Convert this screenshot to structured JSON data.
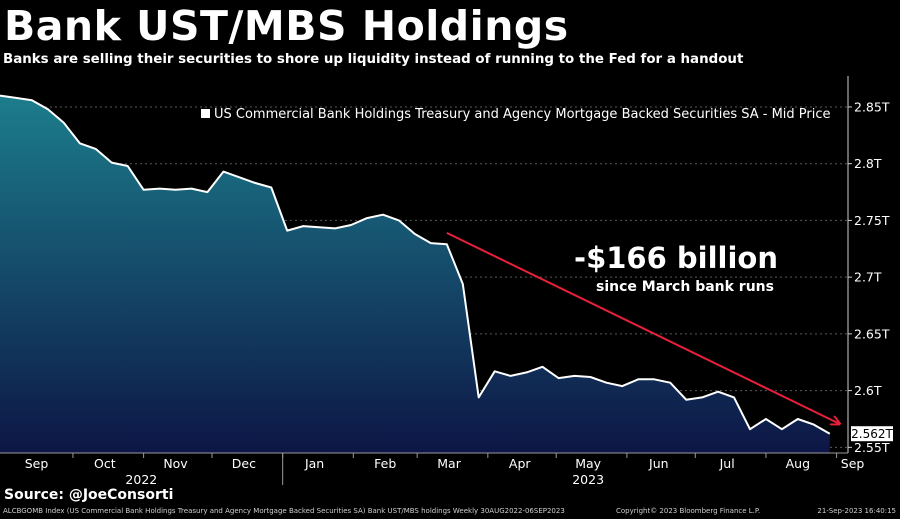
{
  "title": "Bank UST/MBS Holdings",
  "subtitle": "Banks are selling their securities to shore up liquidity instead of running to the Fed for a handout",
  "source": "Source: @JoeConsorti",
  "footer": {
    "left": "ALCBGOMB Index (US Commercial Bank Holdings Treasury and Agency Mortgage Backed Securities SA) Bank UST/MBS holdings  Weekly 30AUG2022-06SEP2023",
    "center": "Copyright© 2023 Bloomberg Finance L.P.",
    "right": "21-Sep-2023 16:40:15"
  },
  "colors": {
    "background": "#000000",
    "area_top": "#1c7d8c",
    "area_bottom": "#0d1646",
    "line": "#ffffff",
    "arrow": "#e8203a",
    "grid": "#5a5a5a"
  },
  "chart_data": {
    "type": "area",
    "legend": "US Commercial Bank Holdings Treasury and Agency Mortgage Backed Securities SA - Mid Price",
    "legend_placement": "top-right",
    "grid": "horizontal dashed",
    "y_axis": {
      "side": "right",
      "range": [
        2.545,
        2.872
      ],
      "ticks": [
        2.55,
        2.6,
        2.65,
        2.7,
        2.75,
        2.8,
        2.85
      ],
      "tick_labels": [
        "2.55T",
        "2.6T",
        "2.65T",
        "2.7T",
        "2.75T",
        "2.8T",
        "2.85T"
      ]
    },
    "x_axis": {
      "start": "2022-08-30",
      "end": "2023-09-06",
      "months": [
        {
          "label": "Sep",
          "date": "2022-09-15"
        },
        {
          "label": "Oct",
          "date": "2022-10-15"
        },
        {
          "label": "Nov",
          "date": "2022-11-15"
        },
        {
          "label": "Dec",
          "date": "2022-12-15"
        },
        {
          "label": "Jan",
          "date": "2023-01-15"
        },
        {
          "label": "Feb",
          "date": "2023-02-15"
        },
        {
          "label": "Mar",
          "date": "2023-03-15"
        },
        {
          "label": "Apr",
          "date": "2023-04-15"
        },
        {
          "label": "May",
          "date": "2023-05-15"
        },
        {
          "label": "Jun",
          "date": "2023-06-15"
        },
        {
          "label": "Jul",
          "date": "2023-07-15"
        },
        {
          "label": "Aug",
          "date": "2023-08-15"
        },
        {
          "label": "Sep",
          "date": "2023-09-08"
        }
      ],
      "month_boundaries": [
        "2022-10-01",
        "2022-11-01",
        "2022-12-01",
        "2023-01-01",
        "2023-02-01",
        "2023-03-01",
        "2023-04-01",
        "2023-05-01",
        "2023-06-01",
        "2023-07-01",
        "2023-08-01",
        "2023-09-01"
      ],
      "years": [
        {
          "label": "2022",
          "date": "2022-10-31"
        },
        {
          "label": "2023",
          "date": "2023-05-15"
        }
      ],
      "year_boundary": "2023-01-01"
    },
    "series": [
      {
        "values": [
          {
            "x": "2022-08-30",
            "y": 2.86
          },
          {
            "x": "2022-09-06",
            "y": 2.858
          },
          {
            "x": "2022-09-13",
            "y": 2.856
          },
          {
            "x": "2022-09-20",
            "y": 2.848
          },
          {
            "x": "2022-09-27",
            "y": 2.836
          },
          {
            "x": "2022-10-04",
            "y": 2.818
          },
          {
            "x": "2022-10-11",
            "y": 2.813
          },
          {
            "x": "2022-10-18",
            "y": 2.801
          },
          {
            "x": "2022-10-25",
            "y": 2.798
          },
          {
            "x": "2022-11-01",
            "y": 2.777
          },
          {
            "x": "2022-11-08",
            "y": 2.778
          },
          {
            "x": "2022-11-15",
            "y": 2.777
          },
          {
            "x": "2022-11-22",
            "y": 2.778
          },
          {
            "x": "2022-11-29",
            "y": 2.775
          },
          {
            "x": "2022-12-06",
            "y": 2.793
          },
          {
            "x": "2022-12-13",
            "y": 2.788
          },
          {
            "x": "2022-12-20",
            "y": 2.783
          },
          {
            "x": "2022-12-27",
            "y": 2.779
          },
          {
            "x": "2023-01-03",
            "y": 2.741
          },
          {
            "x": "2023-01-10",
            "y": 2.745
          },
          {
            "x": "2023-01-17",
            "y": 2.744
          },
          {
            "x": "2023-01-24",
            "y": 2.743
          },
          {
            "x": "2023-01-31",
            "y": 2.746
          },
          {
            "x": "2023-02-07",
            "y": 2.752
          },
          {
            "x": "2023-02-14",
            "y": 2.755
          },
          {
            "x": "2023-02-21",
            "y": 2.75
          },
          {
            "x": "2023-02-28",
            "y": 2.738
          },
          {
            "x": "2023-03-07",
            "y": 2.73
          },
          {
            "x": "2023-03-14",
            "y": 2.729
          },
          {
            "x": "2023-03-21",
            "y": 2.694
          },
          {
            "x": "2023-03-28",
            "y": 2.594
          },
          {
            "x": "2023-04-04",
            "y": 2.617
          },
          {
            "x": "2023-04-11",
            "y": 2.613
          },
          {
            "x": "2023-04-18",
            "y": 2.616
          },
          {
            "x": "2023-04-25",
            "y": 2.621
          },
          {
            "x": "2023-05-02",
            "y": 2.611
          },
          {
            "x": "2023-05-09",
            "y": 2.613
          },
          {
            "x": "2023-05-16",
            "y": 2.612
          },
          {
            "x": "2023-05-23",
            "y": 2.607
          },
          {
            "x": "2023-05-30",
            "y": 2.604
          },
          {
            "x": "2023-06-06",
            "y": 2.61
          },
          {
            "x": "2023-06-13",
            "y": 2.61
          },
          {
            "x": "2023-06-20",
            "y": 2.607
          },
          {
            "x": "2023-06-27",
            "y": 2.592
          },
          {
            "x": "2023-07-04",
            "y": 2.594
          },
          {
            "x": "2023-07-11",
            "y": 2.599
          },
          {
            "x": "2023-07-18",
            "y": 2.594
          },
          {
            "x": "2023-07-25",
            "y": 2.566
          },
          {
            "x": "2023-08-01",
            "y": 2.575
          },
          {
            "x": "2023-08-08",
            "y": 2.566
          },
          {
            "x": "2023-08-15",
            "y": 2.575
          },
          {
            "x": "2023-08-22",
            "y": 2.57
          },
          {
            "x": "2023-08-29",
            "y": 2.562
          }
        ]
      }
    ],
    "last_value_label": "2.562T",
    "last_value": 2.562,
    "annotation": {
      "big": "-$166 billion",
      "small": "since March bank runs",
      "arrow_from": {
        "x": "2023-03-14",
        "y": 2.739
      },
      "arrow_to": {
        "x": "2023-09-02",
        "y": 2.571
      }
    }
  }
}
